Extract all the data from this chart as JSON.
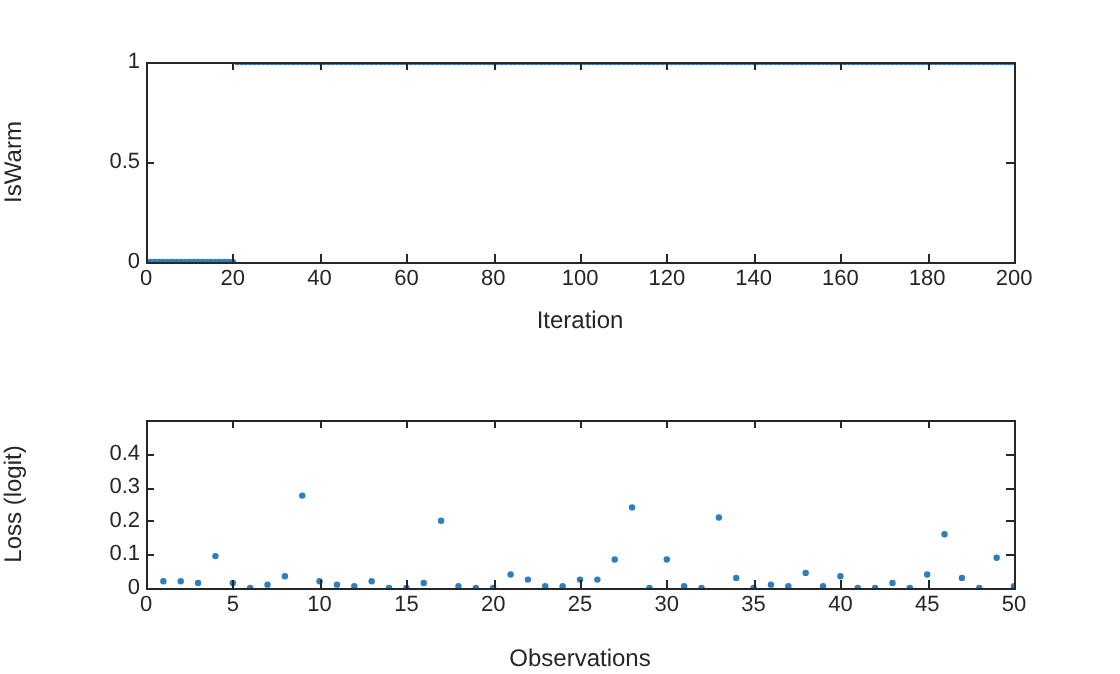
{
  "chart_data": [
    {
      "type": "scatter",
      "xlabel": "Iteration",
      "ylabel": "IsWarm",
      "marker": "circle",
      "grid": false,
      "legend": false,
      "x": [
        1,
        2,
        3,
        4,
        5,
        6,
        7,
        8,
        9,
        10,
        11,
        12,
        13,
        14,
        15,
        16,
        17,
        18,
        19,
        20,
        21,
        22,
        23,
        24,
        25,
        26,
        27,
        28,
        29,
        30,
        31,
        32,
        33,
        34,
        35,
        36,
        37,
        38,
        39,
        40,
        41,
        42,
        43,
        44,
        45,
        46,
        47,
        48,
        49,
        50,
        51,
        52,
        53,
        54,
        55,
        56,
        57,
        58,
        59,
        60,
        61,
        62,
        63,
        64,
        65,
        66,
        67,
        68,
        69,
        70,
        71,
        72,
        73,
        74,
        75,
        76,
        77,
        78,
        79,
        80,
        81,
        82,
        83,
        84,
        85,
        86,
        87,
        88,
        89,
        90,
        91,
        92,
        93,
        94,
        95,
        96,
        97,
        98,
        99,
        100,
        101,
        102,
        103,
        104,
        105,
        106,
        107,
        108,
        109,
        110,
        111,
        112,
        113,
        114,
        115,
        116,
        117,
        118,
        119,
        120,
        121,
        122,
        123,
        124,
        125,
        126,
        127,
        128,
        129,
        130,
        131,
        132,
        133,
        134,
        135,
        136,
        137,
        138,
        139,
        140,
        141,
        142,
        143,
        144,
        145,
        146,
        147,
        148,
        149,
        150,
        151,
        152,
        153,
        154,
        155,
        156,
        157,
        158,
        159,
        160,
        161,
        162,
        163,
        164,
        165,
        166,
        167,
        168,
        169,
        170,
        171,
        172,
        173,
        174,
        175,
        176,
        177,
        178,
        179,
        180,
        181,
        182,
        183,
        184,
        185,
        186,
        187,
        188,
        189,
        190,
        191,
        192,
        193,
        194,
        195,
        196,
        197,
        198,
        199,
        200
      ],
      "values": [
        0,
        0,
        0,
        0,
        0,
        0,
        0,
        0,
        0,
        0,
        0,
        0,
        0,
        0,
        0,
        0,
        0,
        0,
        0,
        0,
        1,
        1,
        1,
        1,
        1,
        1,
        1,
        1,
        1,
        1,
        1,
        1,
        1,
        1,
        1,
        1,
        1,
        1,
        1,
        1,
        1,
        1,
        1,
        1,
        1,
        1,
        1,
        1,
        1,
        1,
        1,
        1,
        1,
        1,
        1,
        1,
        1,
        1,
        1,
        1,
        1,
        1,
        1,
        1,
        1,
        1,
        1,
        1,
        1,
        1,
        1,
        1,
        1,
        1,
        1,
        1,
        1,
        1,
        1,
        1,
        1,
        1,
        1,
        1,
        1,
        1,
        1,
        1,
        1,
        1,
        1,
        1,
        1,
        1,
        1,
        1,
        1,
        1,
        1,
        1,
        1,
        1,
        1,
        1,
        1,
        1,
        1,
        1,
        1,
        1,
        1,
        1,
        1,
        1,
        1,
        1,
        1,
        1,
        1,
        1,
        1,
        1,
        1,
        1,
        1,
        1,
        1,
        1,
        1,
        1,
        1,
        1,
        1,
        1,
        1,
        1,
        1,
        1,
        1,
        1,
        1,
        1,
        1,
        1,
        1,
        1,
        1,
        1,
        1,
        1,
        1,
        1,
        1,
        1,
        1,
        1,
        1,
        1,
        1,
        1,
        1,
        1,
        1,
        1,
        1,
        1,
        1,
        1,
        1,
        1,
        1,
        1,
        1,
        1,
        1,
        1,
        1,
        1,
        1,
        1,
        1,
        1,
        1,
        1,
        1,
        1,
        1,
        1,
        1,
        1,
        1,
        1,
        1,
        1,
        1,
        1,
        1,
        1,
        1,
        1
      ],
      "color": "#2e7ebf",
      "xlim": [
        0,
        200
      ],
      "xticks": [
        0,
        20,
        40,
        60,
        80,
        100,
        120,
        140,
        160,
        180,
        200
      ],
      "ylim": [
        0,
        1
      ],
      "yticks": [
        0,
        0.5,
        1
      ]
    },
    {
      "type": "scatter",
      "xlabel": "Observations",
      "ylabel": "Loss (logit)",
      "marker": "circle",
      "grid": false,
      "legend": false,
      "x": [
        1,
        2,
        3,
        4,
        5,
        6,
        7,
        8,
        9,
        10,
        11,
        12,
        13,
        14,
        15,
        16,
        17,
        18,
        19,
        20,
        21,
        22,
        23,
        24,
        25,
        26,
        27,
        28,
        29,
        30,
        31,
        32,
        33,
        34,
        35,
        36,
        37,
        38,
        39,
        40,
        41,
        42,
        43,
        44,
        45,
        46,
        47,
        48,
        49,
        50
      ],
      "values": [
        0.02,
        0.02,
        0.015,
        0.095,
        0.015,
        0,
        0.01,
        0.035,
        0.275,
        0.02,
        0.01,
        0.005,
        0.02,
        0,
        0,
        0.015,
        0.2,
        0.005,
        0,
        0,
        0.04,
        0.025,
        0.005,
        0.005,
        0.025,
        0.025,
        0.085,
        0.24,
        0,
        0.085,
        0.005,
        0,
        0.21,
        0.03,
        0,
        0.01,
        0.005,
        0.045,
        0.005,
        0.035,
        0,
        0,
        0.015,
        0,
        0.04,
        0.16,
        0.03,
        0,
        0.09,
        0.005
      ],
      "color": "#2e7ebf",
      "xlim": [
        0,
        50
      ],
      "xticks": [
        0,
        5,
        10,
        15,
        20,
        25,
        30,
        35,
        40,
        45,
        50
      ],
      "ylim": [
        0,
        0.5
      ],
      "yticks": [
        0,
        0.1,
        0.2,
        0.3,
        0.4
      ]
    }
  ]
}
